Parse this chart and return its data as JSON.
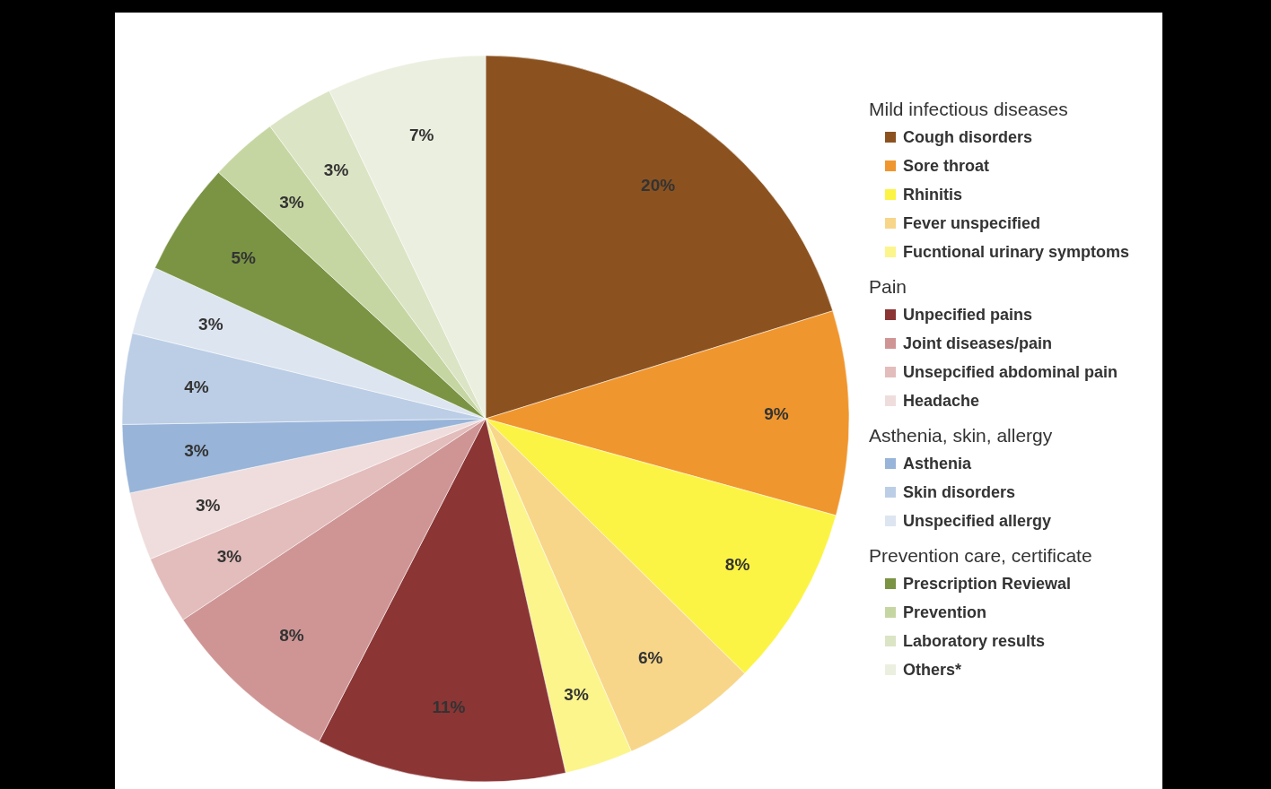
{
  "chart_data": {
    "type": "pie",
    "categories": [
      "Cough disorders",
      "Sore throat",
      "Rhinitis",
      "Fever unspecified",
      "Fucntional urinary symptoms",
      "Unpecified pains",
      "Joint diseases/pain",
      "Unsepcified abdominal pain",
      "Headache",
      "Asthenia",
      "Skin disorders",
      "Unspecified allergy",
      "Prescription Reviewal",
      "Prevention",
      "Laboratory results",
      "Others*"
    ],
    "values": [
      20,
      9,
      8,
      6,
      3,
      11,
      8,
      3,
      3,
      3,
      4,
      3,
      5,
      3,
      3,
      7
    ],
    "colors": [
      "#8b5220",
      "#f0962e",
      "#fcf444",
      "#f7d68a",
      "#fbf58c",
      "#8b3535",
      "#cf9595",
      "#e3bcbc",
      "#efdddd",
      "#98b4d8",
      "#bccee6",
      "#dde5f0",
      "#7a9444",
      "#c6d6a2",
      "#dbe4c4",
      "#ebefdf"
    ],
    "value_labels": [
      "20%",
      "9%",
      "8%",
      "6%",
      "3%",
      "11%",
      "8%",
      "3%",
      "3%",
      "3%",
      "4%",
      "3%",
      "5%",
      "3%",
      "3%",
      "7%"
    ],
    "annotations": [
      "Mild infectious diseases",
      "Pain",
      "Asthenia, skin, allergy",
      "Prevention care, certificate"
    ],
    "legend": "right"
  }
}
